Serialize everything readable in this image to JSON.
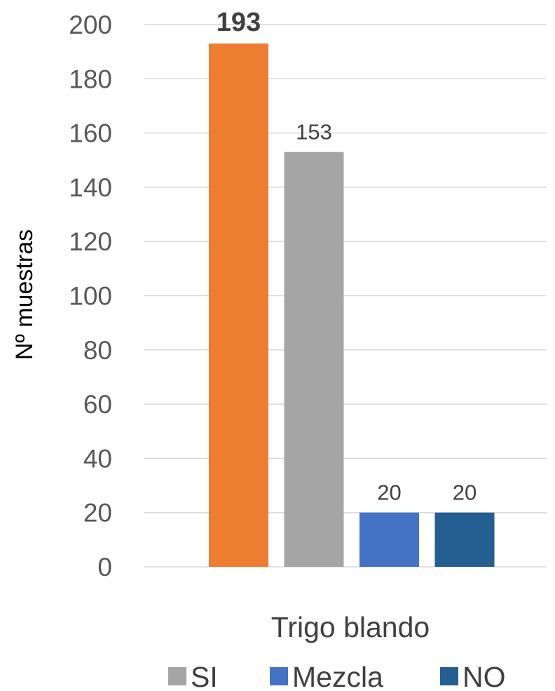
{
  "chart_data": {
    "type": "bar",
    "categories": [
      "Trigo blando"
    ],
    "series": [
      {
        "name": "",
        "values": [
          193
        ],
        "color": "#ED7D31",
        "label_bold": true
      },
      {
        "name": "SI",
        "values": [
          153
        ],
        "color": "#A5A5A5"
      },
      {
        "name": "Mezcla",
        "values": [
          20
        ],
        "color": "#4472C4"
      },
      {
        "name": "NO",
        "values": [
          20
        ],
        "color": "#255E91"
      }
    ],
    "ylabel": "Nº muestras",
    "xlabel": "",
    "ylim": [
      0,
      200
    ],
    "yticks": [
      0,
      20,
      40,
      60,
      80,
      100,
      120,
      140,
      160,
      180,
      200
    ],
    "grid": true,
    "legend": {
      "placement": "bottom",
      "entries": [
        "SI",
        "Mezcla",
        "NO"
      ]
    }
  }
}
